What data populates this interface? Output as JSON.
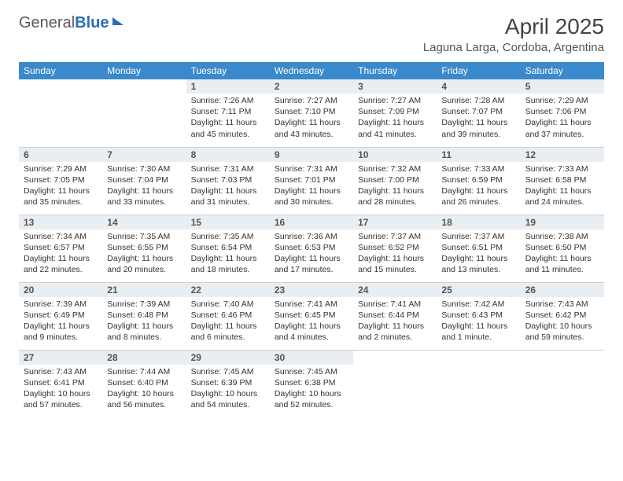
{
  "logo": {
    "word1": "General",
    "word2": "Blue"
  },
  "title": "April 2025",
  "location": "Laguna Larga, Cordoba, Argentina",
  "colors": {
    "header_bg": "#3a89cc",
    "header_fg": "#ffffff",
    "daynum_bg": "#e9eef2",
    "border": "#d0d0d0",
    "logo_blue": "#2a6fb5"
  },
  "weekdays": [
    "Sunday",
    "Monday",
    "Tuesday",
    "Wednesday",
    "Thursday",
    "Friday",
    "Saturday"
  ],
  "weeks": [
    [
      null,
      null,
      {
        "n": "1",
        "sr": "7:26 AM",
        "ss": "7:11 PM",
        "dl": "11 hours and 45 minutes."
      },
      {
        "n": "2",
        "sr": "7:27 AM",
        "ss": "7:10 PM",
        "dl": "11 hours and 43 minutes."
      },
      {
        "n": "3",
        "sr": "7:27 AM",
        "ss": "7:09 PM",
        "dl": "11 hours and 41 minutes."
      },
      {
        "n": "4",
        "sr": "7:28 AM",
        "ss": "7:07 PM",
        "dl": "11 hours and 39 minutes."
      },
      {
        "n": "5",
        "sr": "7:29 AM",
        "ss": "7:06 PM",
        "dl": "11 hours and 37 minutes."
      }
    ],
    [
      {
        "n": "6",
        "sr": "7:29 AM",
        "ss": "7:05 PM",
        "dl": "11 hours and 35 minutes."
      },
      {
        "n": "7",
        "sr": "7:30 AM",
        "ss": "7:04 PM",
        "dl": "11 hours and 33 minutes."
      },
      {
        "n": "8",
        "sr": "7:31 AM",
        "ss": "7:03 PM",
        "dl": "11 hours and 31 minutes."
      },
      {
        "n": "9",
        "sr": "7:31 AM",
        "ss": "7:01 PM",
        "dl": "11 hours and 30 minutes."
      },
      {
        "n": "10",
        "sr": "7:32 AM",
        "ss": "7:00 PM",
        "dl": "11 hours and 28 minutes."
      },
      {
        "n": "11",
        "sr": "7:33 AM",
        "ss": "6:59 PM",
        "dl": "11 hours and 26 minutes."
      },
      {
        "n": "12",
        "sr": "7:33 AM",
        "ss": "6:58 PM",
        "dl": "11 hours and 24 minutes."
      }
    ],
    [
      {
        "n": "13",
        "sr": "7:34 AM",
        "ss": "6:57 PM",
        "dl": "11 hours and 22 minutes."
      },
      {
        "n": "14",
        "sr": "7:35 AM",
        "ss": "6:55 PM",
        "dl": "11 hours and 20 minutes."
      },
      {
        "n": "15",
        "sr": "7:35 AM",
        "ss": "6:54 PM",
        "dl": "11 hours and 18 minutes."
      },
      {
        "n": "16",
        "sr": "7:36 AM",
        "ss": "6:53 PM",
        "dl": "11 hours and 17 minutes."
      },
      {
        "n": "17",
        "sr": "7:37 AM",
        "ss": "6:52 PM",
        "dl": "11 hours and 15 minutes."
      },
      {
        "n": "18",
        "sr": "7:37 AM",
        "ss": "6:51 PM",
        "dl": "11 hours and 13 minutes."
      },
      {
        "n": "19",
        "sr": "7:38 AM",
        "ss": "6:50 PM",
        "dl": "11 hours and 11 minutes."
      }
    ],
    [
      {
        "n": "20",
        "sr": "7:39 AM",
        "ss": "6:49 PM",
        "dl": "11 hours and 9 minutes."
      },
      {
        "n": "21",
        "sr": "7:39 AM",
        "ss": "6:48 PM",
        "dl": "11 hours and 8 minutes."
      },
      {
        "n": "22",
        "sr": "7:40 AM",
        "ss": "6:46 PM",
        "dl": "11 hours and 6 minutes."
      },
      {
        "n": "23",
        "sr": "7:41 AM",
        "ss": "6:45 PM",
        "dl": "11 hours and 4 minutes."
      },
      {
        "n": "24",
        "sr": "7:41 AM",
        "ss": "6:44 PM",
        "dl": "11 hours and 2 minutes."
      },
      {
        "n": "25",
        "sr": "7:42 AM",
        "ss": "6:43 PM",
        "dl": "11 hours and 1 minute."
      },
      {
        "n": "26",
        "sr": "7:43 AM",
        "ss": "6:42 PM",
        "dl": "10 hours and 59 minutes."
      }
    ],
    [
      {
        "n": "27",
        "sr": "7:43 AM",
        "ss": "6:41 PM",
        "dl": "10 hours and 57 minutes."
      },
      {
        "n": "28",
        "sr": "7:44 AM",
        "ss": "6:40 PM",
        "dl": "10 hours and 56 minutes."
      },
      {
        "n": "29",
        "sr": "7:45 AM",
        "ss": "6:39 PM",
        "dl": "10 hours and 54 minutes."
      },
      {
        "n": "30",
        "sr": "7:45 AM",
        "ss": "6:38 PM",
        "dl": "10 hours and 52 minutes."
      },
      null,
      null,
      null
    ]
  ],
  "labels": {
    "sunrise": "Sunrise:",
    "sunset": "Sunset:",
    "daylight": "Daylight:"
  }
}
